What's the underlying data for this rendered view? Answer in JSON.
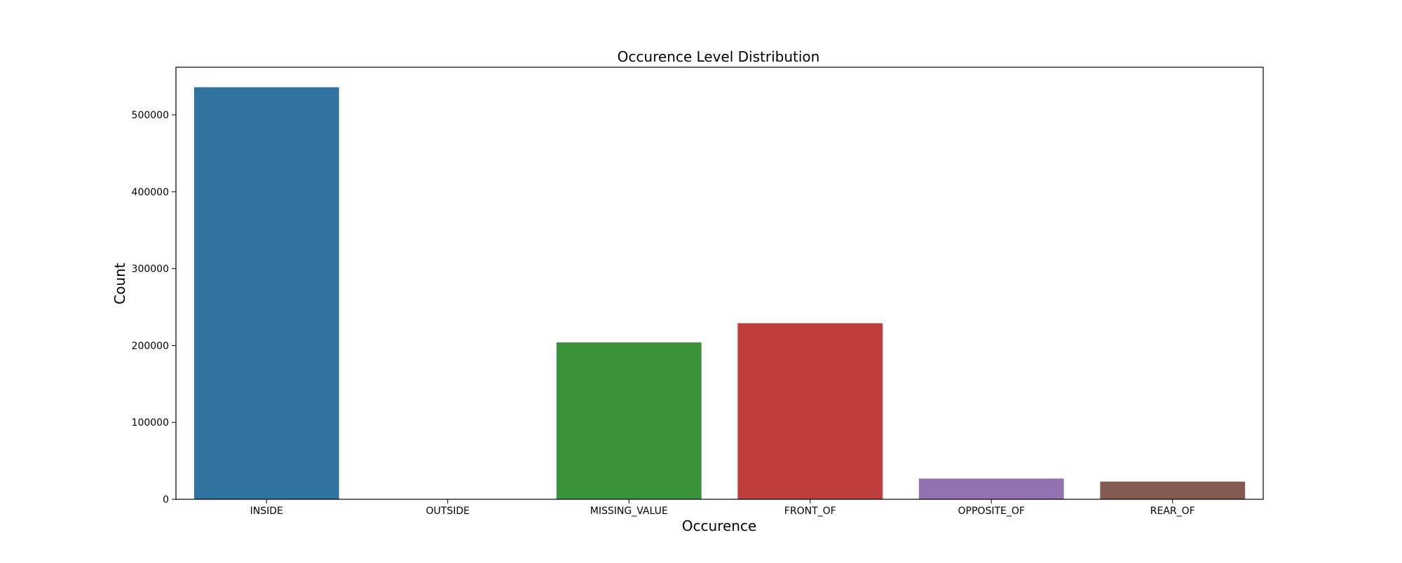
{
  "chart_data": {
    "type": "bar",
    "title": "Occurence Level Distribution",
    "xlabel": "Occurence",
    "ylabel": "Count",
    "categories": [
      "INSIDE",
      "OUTSIDE",
      "MISSING_VALUE",
      "FRONT_OF",
      "OPPOSITE_OF",
      "REAR_OF"
    ],
    "values": [
      536000,
      0,
      204000,
      229000,
      27000,
      23000
    ],
    "colors": [
      "#3274a1",
      "#e1812c",
      "#3a923a",
      "#c03d3e",
      "#9372b2",
      "#845b53"
    ],
    "ylim": [
      0,
      562000
    ],
    "yticks": [
      0,
      100000,
      200000,
      300000,
      400000,
      500000
    ],
    "grid": false,
    "legend": "none"
  }
}
